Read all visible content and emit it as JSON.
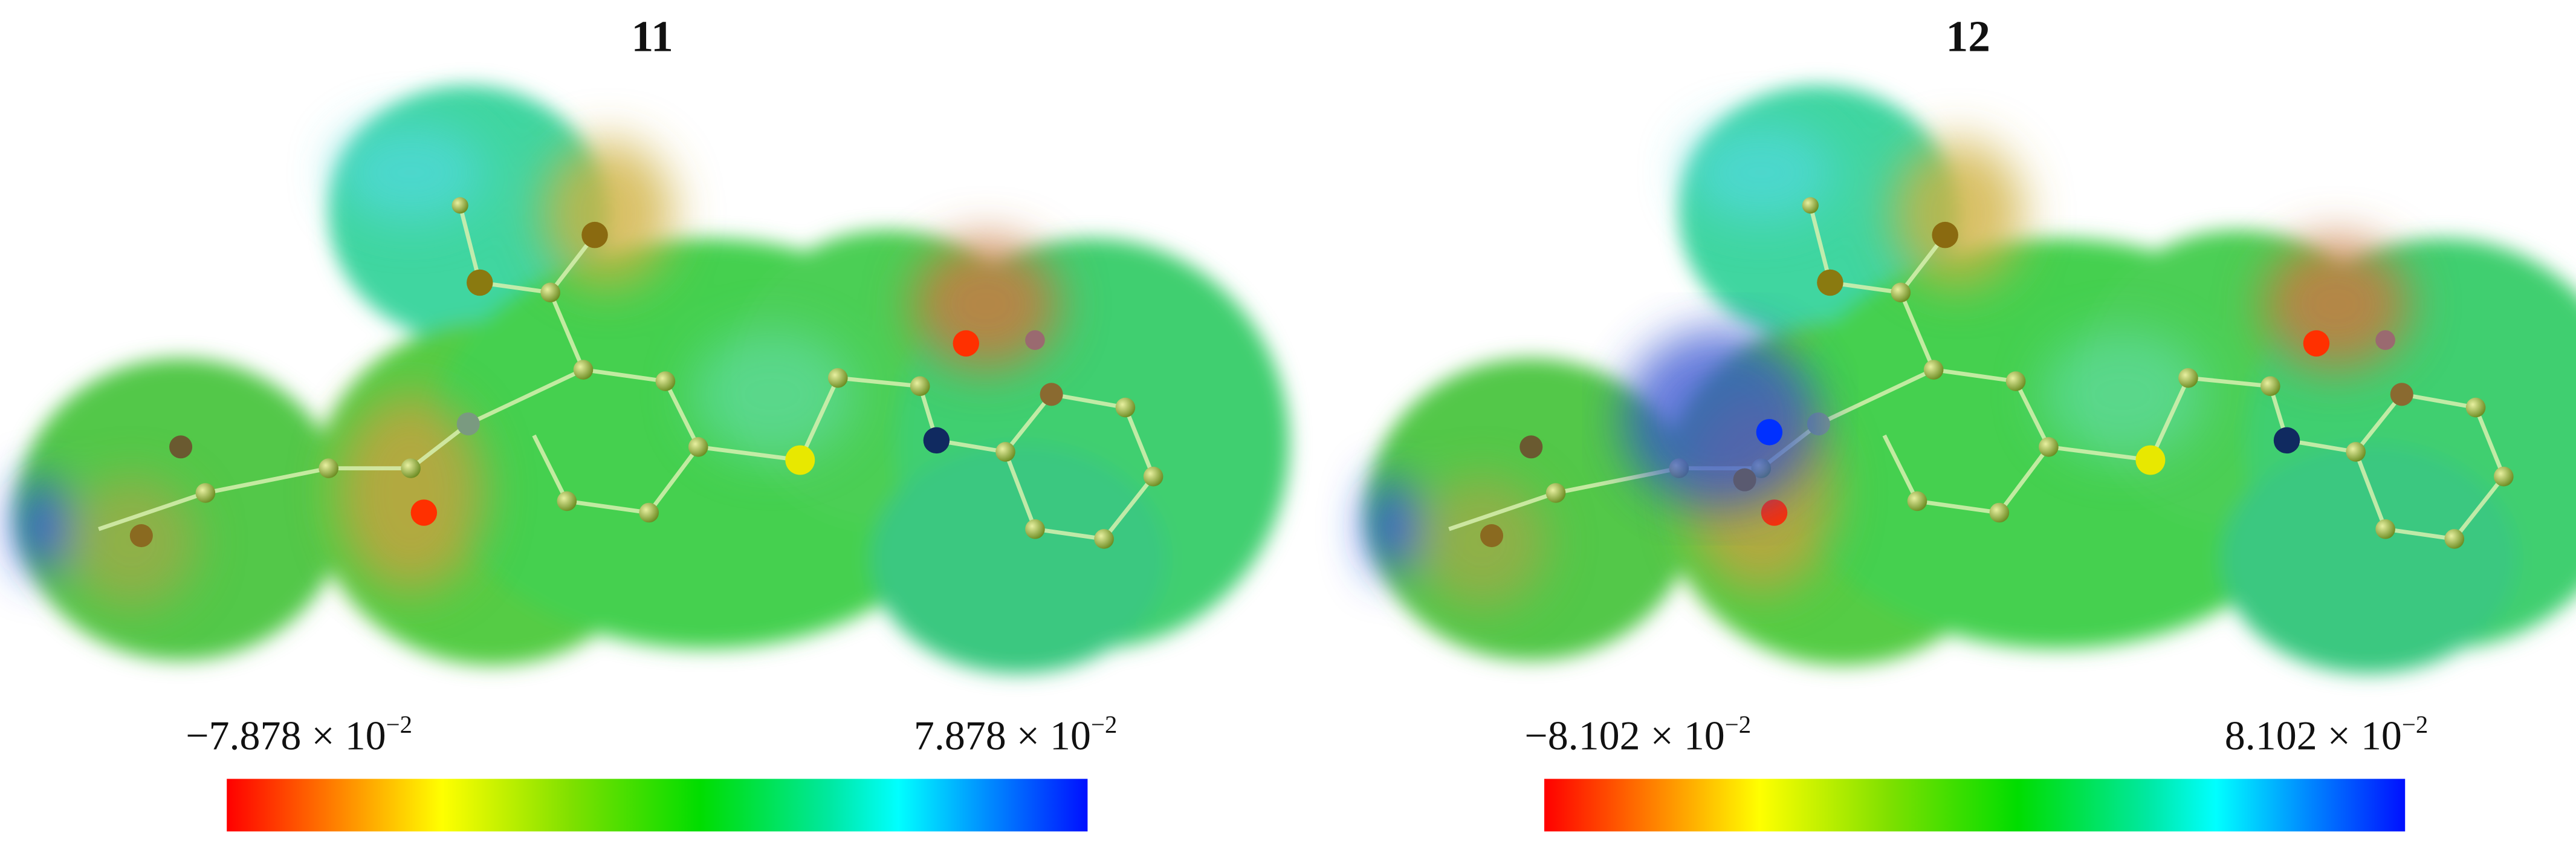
{
  "panels": [
    {
      "title": "11",
      "scale": {
        "min": {
          "text": "−7.878 × 10",
          "exponent": "−2"
        },
        "max": {
          "text": "7.878 × 10",
          "exponent": "−2"
        }
      }
    },
    {
      "title": "12",
      "scale": {
        "min": {
          "text": "−8.102 × 10",
          "exponent": "−2"
        },
        "max": {
          "text": "8.102 × 10",
          "exponent": "−2"
        }
      }
    }
  ]
}
